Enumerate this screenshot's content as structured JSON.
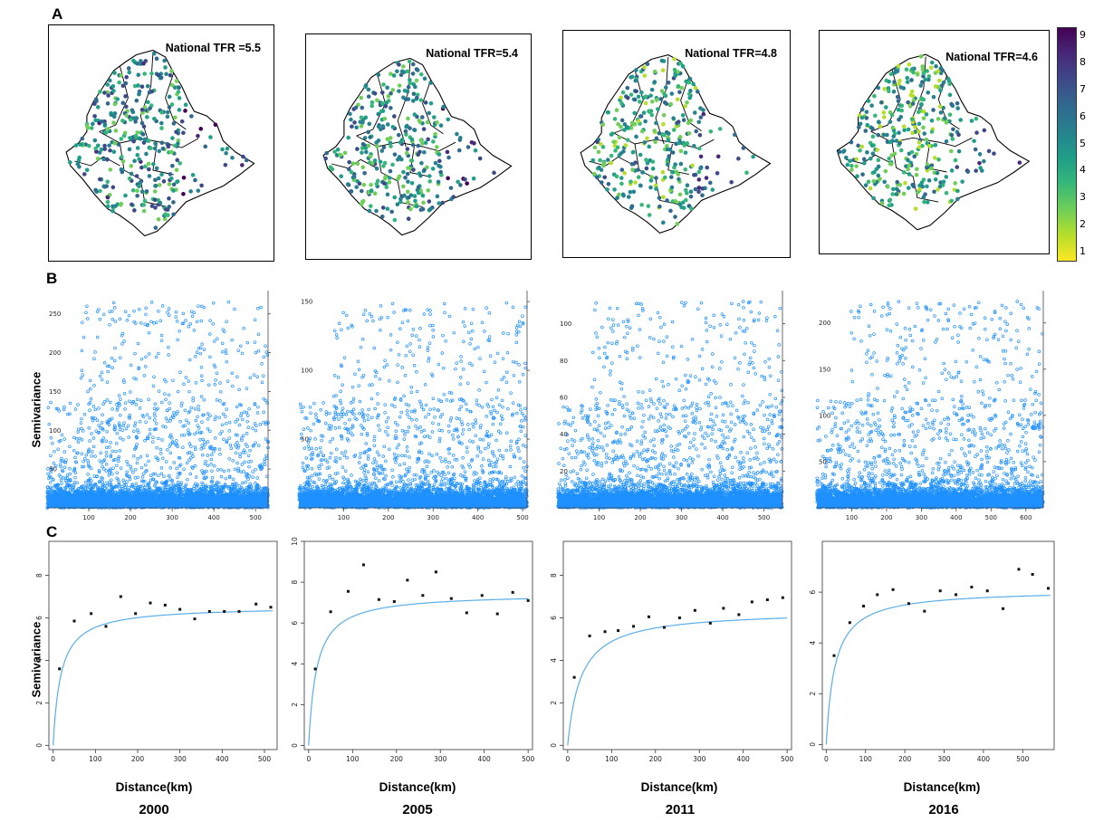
{
  "panels": {
    "a": "A",
    "b": "B",
    "c": "C"
  },
  "years": [
    "2000",
    "2005",
    "2011",
    "2016"
  ],
  "maps": [
    {
      "tfr_label": "National TFR =5.5",
      "seed": 11
    },
    {
      "tfr_label": "National TFR=5.4",
      "seed": 23
    },
    {
      "tfr_label": "National TFR=4.8",
      "seed": 37
    },
    {
      "tfr_label": "National TFR=4.6",
      "seed": 53
    }
  ],
  "colorbar": {
    "ticks": [
      "1",
      "2",
      "3",
      "4",
      "5",
      "6",
      "7",
      "8",
      "9"
    ],
    "colors": [
      "#fde725",
      "#b5de2b",
      "#6ece58",
      "#35b779",
      "#1f9e89",
      "#26828e",
      "#31688e",
      "#3e4989",
      "#482878",
      "#440154"
    ]
  },
  "axis_labels": {
    "semivariance": "Semivariance",
    "distance": "Distance(km)"
  },
  "chart_data": [
    {
      "type": "scatter",
      "panel": "B",
      "year": "2000",
      "xlim": [
        0,
        530
      ],
      "ylim": [
        0,
        280
      ],
      "xticks": [
        100,
        200,
        300,
        400,
        500
      ],
      "yticks": [
        50,
        100,
        150,
        200,
        250
      ],
      "ytick_labels": [
        "50",
        "100",
        "150",
        "200",
        "250"
      ],
      "description_points": "dense cloud 0-40, sparse points up to ~270"
    },
    {
      "type": "scatter",
      "panel": "B",
      "year": "2005",
      "xlim": [
        0,
        510
      ],
      "ylim": [
        0,
        158
      ],
      "xticks": [
        100,
        200,
        300,
        400,
        500
      ],
      "yticks": [
        50,
        100,
        150
      ],
      "ytick_labels": [
        "50",
        "100",
        "150"
      ]
    },
    {
      "type": "scatter",
      "panel": "B",
      "year": "2011",
      "xlim": [
        0,
        545
      ],
      "ylim": [
        0,
        118
      ],
      "xticks": [
        100,
        200,
        300,
        400,
        500
      ],
      "yticks": [
        20,
        40,
        60,
        80,
        100
      ],
      "ytick_labels": [
        "20",
        "40",
        "60",
        "80",
        "100"
      ]
    },
    {
      "type": "scatter",
      "panel": "B",
      "year": "2016",
      "xlim": [
        0,
        650
      ],
      "ylim": [
        0,
        235
      ],
      "xticks": [
        100,
        200,
        300,
        400,
        500,
        600
      ],
      "yticks": [
        50,
        100,
        150,
        200
      ],
      "ytick_labels": [
        "50",
        "100",
        "150",
        "200"
      ]
    },
    {
      "type": "line",
      "panel": "C",
      "year": "2000",
      "xlim": [
        -10,
        530
      ],
      "ylim": [
        -0.2,
        9.6
      ],
      "xticks": [
        0,
        100,
        200,
        300,
        400,
        500
      ],
      "yticks": [
        0,
        2,
        4,
        6,
        8
      ],
      "nugget": 0,
      "sill": 6.55,
      "range": 18,
      "points": {
        "x": [
          15,
          50,
          90,
          125,
          160,
          195,
          230,
          265,
          300,
          335,
          370,
          405,
          440,
          480,
          515
        ],
        "y": [
          3.6,
          5.85,
          6.2,
          5.6,
          7.0,
          6.2,
          6.7,
          6.6,
          6.4,
          5.95,
          6.3,
          6.3,
          6.3,
          6.65,
          6.5
        ]
      }
    },
    {
      "type": "line",
      "panel": "C",
      "year": "2005",
      "xlim": [
        -10,
        510
      ],
      "ylim": [
        -0.2,
        10
      ],
      "xticks": [
        0,
        100,
        200,
        300,
        400,
        500
      ],
      "yticks": [
        0,
        2,
        4,
        6,
        8,
        10
      ],
      "nugget": 0,
      "sill": 7.45,
      "range": 18,
      "points": {
        "x": [
          15,
          50,
          90,
          125,
          160,
          195,
          225,
          260,
          290,
          325,
          360,
          395,
          430,
          465,
          500
        ],
        "y": [
          3.75,
          6.55,
          7.55,
          8.85,
          7.15,
          7.05,
          8.1,
          7.35,
          8.5,
          7.2,
          6.5,
          7.35,
          6.45,
          7.5,
          7.1
        ]
      }
    },
    {
      "type": "line",
      "panel": "C",
      "year": "2011",
      "xlim": [
        -10,
        510
      ],
      "ylim": [
        -0.2,
        9.6
      ],
      "xticks": [
        0,
        100,
        200,
        300,
        400,
        500
      ],
      "yticks": [
        0,
        2,
        4,
        6,
        8
      ],
      "nugget": 0,
      "sill": 6.35,
      "range": 30,
      "points": {
        "x": [
          15,
          50,
          85,
          115,
          150,
          185,
          220,
          255,
          290,
          325,
          355,
          390,
          420,
          455,
          490
        ],
        "y": [
          3.2,
          5.15,
          5.35,
          5.4,
          5.6,
          6.05,
          5.55,
          6.0,
          6.35,
          5.75,
          6.45,
          6.15,
          6.75,
          6.85,
          6.95
        ]
      }
    },
    {
      "type": "line",
      "panel": "C",
      "year": "2016",
      "xlim": [
        -10,
        580
      ],
      "ylim": [
        -0.2,
        8.0
      ],
      "xticks": [
        0,
        100,
        200,
        300,
        400,
        500
      ],
      "yticks": [
        0,
        2,
        4,
        6
      ],
      "nugget": 0,
      "sill": 6.1,
      "range": 22,
      "points": {
        "x": [
          20,
          60,
          95,
          130,
          170,
          210,
          250,
          290,
          330,
          370,
          410,
          450,
          490,
          525,
          565
        ],
        "y": [
          3.5,
          4.8,
          5.45,
          5.9,
          6.1,
          5.55,
          5.25,
          6.05,
          5.9,
          6.2,
          6.05,
          5.35,
          6.9,
          6.7,
          6.15
        ]
      }
    }
  ]
}
